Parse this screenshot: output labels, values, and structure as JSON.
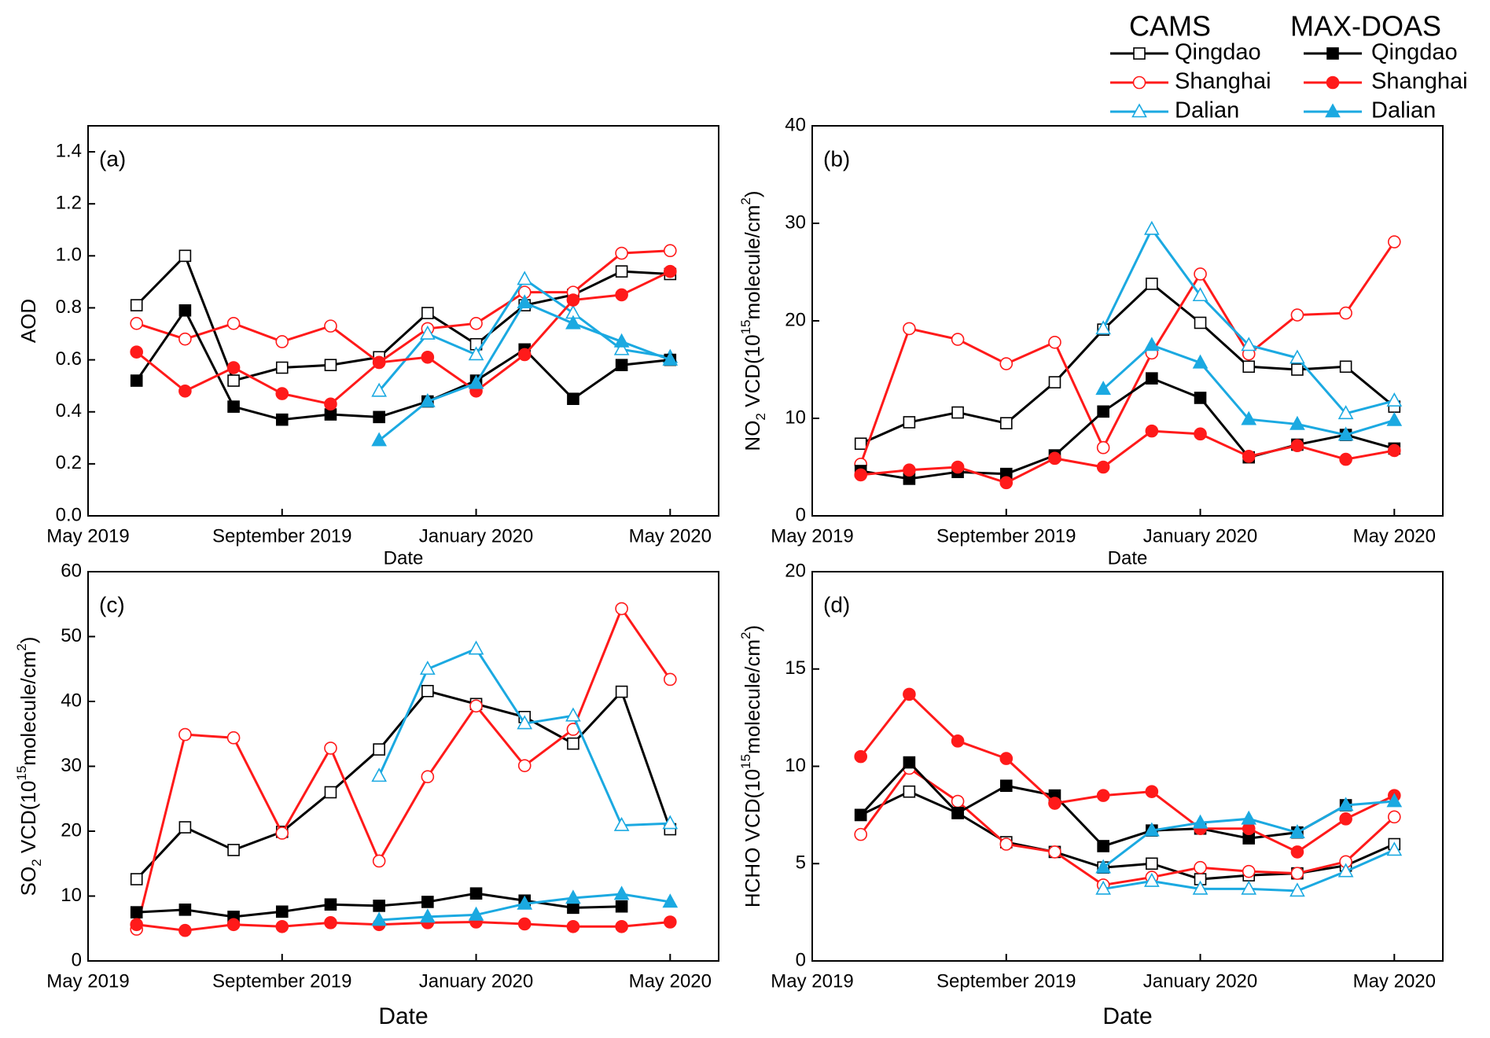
{
  "chart_data": [
    {
      "type": "line",
      "label": "(a)",
      "xlabel": "Date",
      "ylabel": [
        "AOD"
      ],
      "x": [
        "2019-06",
        "2019-07",
        "2019-08",
        "2019-09",
        "2019-10",
        "2019-11",
        "2019-12",
        "2020-01",
        "2020-02",
        "2020-03",
        "2020-04",
        "2020-05"
      ],
      "xlim": [
        "2019-05",
        "2020-06"
      ],
      "xticks": [
        {
          "value": "2019-05",
          "label": "May 2019"
        },
        {
          "value": "2019-09",
          "label": "September 2019"
        },
        {
          "value": "2020-01",
          "label": "January 2020"
        },
        {
          "value": "2020-05",
          "label": "May 2020"
        }
      ],
      "ylim": [
        0,
        1.5
      ],
      "yticks": [
        {
          "value": 0,
          "label": "0.0"
        },
        0.2,
        0.4,
        0.6,
        0.8,
        {
          "value": 1,
          "label": "1.0"
        },
        1.2,
        1.4
      ],
      "series": [
        {
          "source": "CAMS",
          "name": "Qingdao",
          "color": "#000000",
          "marker": "square",
          "filled": false,
          "values": [
            0.81,
            1.0,
            0.52,
            0.57,
            0.58,
            0.61,
            0.78,
            0.66,
            0.81,
            0.85,
            0.94,
            0.93
          ]
        },
        {
          "source": "CAMS",
          "name": "Shanghai",
          "color": "#ff1a1a",
          "marker": "circle",
          "filled": false,
          "values": [
            0.74,
            0.68,
            0.74,
            0.67,
            0.73,
            0.59,
            0.72,
            0.74,
            0.86,
            0.86,
            1.01,
            1.02
          ]
        },
        {
          "source": "CAMS",
          "name": "Dalian",
          "color": "#1ba9e1",
          "marker": "triangle",
          "filled": false,
          "values": [
            null,
            null,
            null,
            null,
            null,
            0.48,
            0.7,
            0.62,
            0.91,
            0.78,
            0.64,
            0.61
          ]
        },
        {
          "source": "MAX-DOAS",
          "name": "Qingdao",
          "color": "#000000",
          "marker": "square",
          "filled": true,
          "values": [
            0.52,
            0.79,
            0.42,
            0.37,
            0.39,
            0.38,
            0.44,
            0.52,
            0.64,
            0.45,
            0.58,
            0.6
          ]
        },
        {
          "source": "MAX-DOAS",
          "name": "Shanghai",
          "color": "#ff1a1a",
          "marker": "circle",
          "filled": true,
          "values": [
            0.63,
            0.48,
            0.57,
            0.47,
            0.43,
            0.59,
            0.61,
            0.48,
            0.62,
            0.83,
            0.85,
            0.94
          ]
        },
        {
          "source": "MAX-DOAS",
          "name": "Dalian",
          "color": "#1ba9e1",
          "marker": "triangle",
          "filled": true,
          "values": [
            null,
            null,
            null,
            null,
            null,
            0.29,
            0.44,
            0.51,
            0.82,
            0.74,
            0.67,
            0.6
          ]
        }
      ]
    },
    {
      "type": "line",
      "label": "(b)",
      "xlabel": "Date",
      "ylabel": [
        "NO",
        {
          "text": "2",
          "shift": "sub"
        },
        " VCD(10",
        {
          "text": "15",
          "shift": "super"
        },
        "molecule/cm",
        {
          "text": "2",
          "shift": "super"
        },
        ")"
      ],
      "x": [
        "2019-06",
        "2019-07",
        "2019-08",
        "2019-09",
        "2019-10",
        "2019-11",
        "2019-12",
        "2020-01",
        "2020-02",
        "2020-03",
        "2020-04",
        "2020-05"
      ],
      "xlim": [
        "2019-05",
        "2020-06"
      ],
      "xticks": [
        {
          "value": "2019-05",
          "label": "May 2019"
        },
        {
          "value": "2019-09",
          "label": "September 2019"
        },
        {
          "value": "2020-01",
          "label": "January 2020"
        },
        {
          "value": "2020-05",
          "label": "May 2020"
        }
      ],
      "ylim": [
        0,
        40
      ],
      "yticks": [
        0,
        10,
        20,
        30,
        40
      ],
      "series": [
        {
          "source": "CAMS",
          "name": "Qingdao",
          "color": "#000000",
          "marker": "square",
          "filled": false,
          "values": [
            7.4,
            9.6,
            10.6,
            9.5,
            13.7,
            19.1,
            23.8,
            19.8,
            15.3,
            15.0,
            15.3,
            11.2
          ]
        },
        {
          "source": "CAMS",
          "name": "Shanghai",
          "color": "#ff1a1a",
          "marker": "circle",
          "filled": false,
          "values": [
            5.3,
            19.2,
            18.1,
            15.6,
            17.8,
            7.0,
            16.7,
            24.8,
            16.6,
            20.6,
            20.8,
            28.1
          ]
        },
        {
          "source": "CAMS",
          "name": "Dalian",
          "color": "#1ba9e1",
          "marker": "triangle",
          "filled": false,
          "values": [
            null,
            null,
            null,
            null,
            null,
            19.2,
            29.4,
            22.6,
            17.5,
            16.2,
            10.5,
            11.8
          ]
        },
        {
          "source": "MAX-DOAS",
          "name": "Qingdao",
          "color": "#000000",
          "marker": "square",
          "filled": true,
          "values": [
            4.6,
            3.8,
            4.5,
            4.3,
            6.2,
            10.7,
            14.1,
            12.1,
            6.0,
            7.3,
            8.3,
            6.9
          ]
        },
        {
          "source": "MAX-DOAS",
          "name": "Shanghai",
          "color": "#ff1a1a",
          "marker": "circle",
          "filled": true,
          "values": [
            4.2,
            4.7,
            5.0,
            3.4,
            5.9,
            5.0,
            8.7,
            8.4,
            6.1,
            7.2,
            5.8,
            6.7
          ]
        },
        {
          "source": "MAX-DOAS",
          "name": "Dalian",
          "color": "#1ba9e1",
          "marker": "triangle",
          "filled": true,
          "values": [
            null,
            null,
            null,
            null,
            null,
            13.0,
            17.5,
            15.7,
            9.9,
            9.4,
            8.3,
            9.8
          ]
        }
      ]
    },
    {
      "type": "line",
      "label": "(c)",
      "xlabel": "Date",
      "ylabel": [
        "SO",
        {
          "text": "2",
          "shift": "sub"
        },
        " VCD(10",
        {
          "text": "15",
          "shift": "super"
        },
        "molecule/cm",
        {
          "text": "2",
          "shift": "super"
        },
        ")"
      ],
      "x": [
        "2019-06",
        "2019-07",
        "2019-08",
        "2019-09",
        "2019-10",
        "2019-11",
        "2019-12",
        "2020-01",
        "2020-02",
        "2020-03",
        "2020-04",
        "2020-05"
      ],
      "xlim": [
        "2019-05",
        "2020-06"
      ],
      "xticks": [
        {
          "value": "2019-05",
          "label": "May 2019"
        },
        {
          "value": "2019-09",
          "label": "September 2019"
        },
        {
          "value": "2020-01",
          "label": "January 2020"
        },
        {
          "value": "2020-05",
          "label": "May 2020"
        }
      ],
      "ylim": [
        0,
        60
      ],
      "yticks": [
        0,
        10,
        20,
        30,
        40,
        50,
        60
      ],
      "series": [
        {
          "source": "CAMS",
          "name": "Qingdao",
          "color": "#000000",
          "marker": "square",
          "filled": false,
          "values": [
            12.6,
            20.6,
            17.1,
            19.9,
            26.0,
            32.6,
            41.6,
            39.6,
            37.6,
            33.5,
            41.5,
            20.3
          ]
        },
        {
          "source": "CAMS",
          "name": "Shanghai",
          "color": "#ff1a1a",
          "marker": "circle",
          "filled": false,
          "values": [
            4.9,
            34.9,
            34.4,
            19.7,
            32.8,
            15.4,
            28.4,
            39.3,
            30.1,
            35.7,
            54.3,
            43.4
          ]
        },
        {
          "source": "CAMS",
          "name": "Dalian",
          "color": "#1ba9e1",
          "marker": "triangle",
          "filled": false,
          "values": [
            null,
            null,
            null,
            null,
            null,
            28.5,
            45.0,
            48.1,
            36.6,
            37.8,
            20.9,
            21.2
          ]
        },
        {
          "source": "MAX-DOAS",
          "name": "Qingdao",
          "color": "#000000",
          "marker": "square",
          "filled": true,
          "values": [
            7.5,
            7.9,
            6.8,
            7.6,
            8.7,
            8.5,
            9.1,
            10.4,
            9.3,
            8.2,
            8.4,
            null
          ]
        },
        {
          "source": "MAX-DOAS",
          "name": "Shanghai",
          "color": "#ff1a1a",
          "marker": "circle",
          "filled": true,
          "values": [
            5.6,
            4.7,
            5.6,
            5.3,
            5.9,
            5.6,
            5.9,
            6.0,
            5.7,
            5.3,
            5.3,
            6.0
          ]
        },
        {
          "source": "MAX-DOAS",
          "name": "Dalian",
          "color": "#1ba9e1",
          "marker": "triangle",
          "filled": true,
          "values": [
            null,
            null,
            null,
            null,
            null,
            6.3,
            6.8,
            7.1,
            8.8,
            9.7,
            10.3,
            9.1
          ]
        }
      ]
    },
    {
      "type": "line",
      "label": "(d)",
      "xlabel": "Date",
      "ylabel": [
        "HCHO VCD(10",
        {
          "text": "15",
          "shift": "super"
        },
        "molecule/cm",
        {
          "text": "2",
          "shift": "super"
        },
        ")"
      ],
      "x": [
        "2019-06",
        "2019-07",
        "2019-08",
        "2019-09",
        "2019-10",
        "2019-11",
        "2019-12",
        "2020-01",
        "2020-02",
        "2020-03",
        "2020-04",
        "2020-05"
      ],
      "xlim": [
        "2019-05",
        "2020-06"
      ],
      "xticks": [
        {
          "value": "2019-05",
          "label": "May 2019"
        },
        {
          "value": "2019-09",
          "label": "September 2019"
        },
        {
          "value": "2020-01",
          "label": "January 2020"
        },
        {
          "value": "2020-05",
          "label": "May 2020"
        }
      ],
      "ylim": [
        0,
        20
      ],
      "yticks": [
        0,
        5,
        10,
        15,
        20
      ],
      "series": [
        {
          "source": "CAMS",
          "name": "Qingdao",
          "color": "#000000",
          "marker": "square",
          "filled": false,
          "values": [
            7.5,
            8.7,
            7.6,
            6.1,
            5.6,
            4.8,
            5.0,
            4.2,
            4.4,
            4.5,
            4.9,
            6.0
          ]
        },
        {
          "source": "CAMS",
          "name": "Shanghai",
          "color": "#ff1a1a",
          "marker": "circle",
          "filled": false,
          "values": [
            6.5,
            9.9,
            8.2,
            6.0,
            5.6,
            3.9,
            4.3,
            4.8,
            4.6,
            4.5,
            5.1,
            7.4
          ]
        },
        {
          "source": "CAMS",
          "name": "Dalian",
          "color": "#1ba9e1",
          "marker": "triangle",
          "filled": false,
          "values": [
            null,
            null,
            null,
            null,
            null,
            3.7,
            4.1,
            3.7,
            3.7,
            3.6,
            4.6,
            5.7
          ]
        },
        {
          "source": "MAX-DOAS",
          "name": "Qingdao",
          "color": "#000000",
          "marker": "square",
          "filled": true,
          "values": [
            7.5,
            10.2,
            7.6,
            9.0,
            8.5,
            5.9,
            6.7,
            6.8,
            6.3,
            6.6,
            8.0,
            null
          ]
        },
        {
          "source": "MAX-DOAS",
          "name": "Shanghai",
          "color": "#ff1a1a",
          "marker": "circle",
          "filled": true,
          "values": [
            10.5,
            13.7,
            11.3,
            10.4,
            8.1,
            8.5,
            8.7,
            6.8,
            6.8,
            5.6,
            7.3,
            8.5
          ]
        },
        {
          "source": "MAX-DOAS",
          "name": "Dalian",
          "color": "#1ba9e1",
          "marker": "triangle",
          "filled": true,
          "values": [
            null,
            null,
            null,
            null,
            null,
            4.8,
            6.7,
            7.1,
            7.3,
            6.6,
            8.0,
            8.2
          ]
        }
      ]
    }
  ]
}
